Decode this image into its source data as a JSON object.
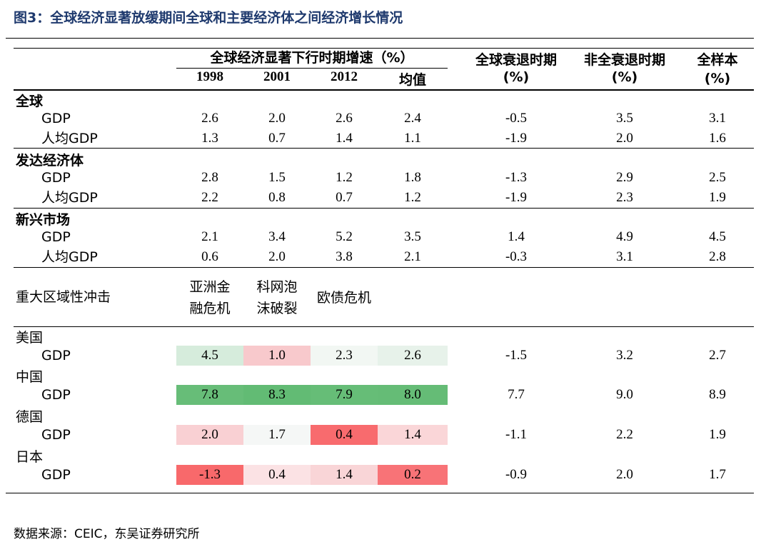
{
  "title": "图3：全球经济显著放缓期间全球和主要经济体之间经济增长情况",
  "source": "数据来源：CEIC，东吴证券研究所",
  "chart_data": {
    "type": "table",
    "header": {
      "group_label": "全球经济显著下行时期增速（%）",
      "years": [
        "1998",
        "2001",
        "2012"
      ],
      "mean_label": "均值",
      "recession_label": "全球衰退时期",
      "recession_unit": "(%)",
      "nonrecession_label": "非全衰退时期",
      "nonrecession_unit": "(%)",
      "full_label": "全样本",
      "full_unit": "(%)"
    },
    "groups": [
      {
        "name": "全球",
        "rows": [
          {
            "label": "GDP",
            "values": [
              "2.6",
              "2.0",
              "2.6",
              "2.4",
              "-0.5",
              "3.5",
              "3.1"
            ]
          },
          {
            "label": "人均GDP",
            "values": [
              "1.3",
              "0.7",
              "1.4",
              "1.1",
              "-1.9",
              "2.0",
              "1.6"
            ]
          }
        ]
      },
      {
        "name": "发达经济体",
        "rows": [
          {
            "label": "GDP",
            "values": [
              "2.8",
              "1.5",
              "1.2",
              "1.8",
              "-1.3",
              "2.9",
              "2.5"
            ]
          },
          {
            "label": "人均GDP",
            "values": [
              "2.2",
              "0.8",
              "0.7",
              "1.2",
              "-1.9",
              "2.3",
              "1.9"
            ]
          }
        ]
      },
      {
        "name": "新兴市场",
        "rows": [
          {
            "label": "GDP",
            "values": [
              "2.1",
              "3.4",
              "5.2",
              "3.5",
              "1.4",
              "4.9",
              "4.5"
            ]
          },
          {
            "label": "人均GDP",
            "values": [
              "0.6",
              "2.0",
              "3.8",
              "2.1",
              "-0.3",
              "3.1",
              "2.8"
            ]
          }
        ]
      }
    ],
    "shock": {
      "label": "重大区域性冲击",
      "events": [
        "亚洲金\n融危机",
        "科网泡\n沫破裂",
        "欧债危机"
      ]
    },
    "countries": [
      {
        "name": "美国",
        "label": "GDP",
        "values": [
          "4.5",
          "1.0",
          "2.3",
          "2.6",
          "-1.5",
          "3.2",
          "2.7"
        ],
        "colors": [
          "#d6ecdc",
          "#f8c9cc",
          "#f2f7f3",
          "#e7f2ea"
        ]
      },
      {
        "name": "中国",
        "label": "GDP",
        "values": [
          "7.8",
          "8.3",
          "7.9",
          "8.0",
          "7.7",
          "9.0",
          "8.9"
        ],
        "colors": [
          "#67bd78",
          "#62bb74",
          "#66bd77",
          "#65bc76"
        ]
      },
      {
        "name": "德国",
        "label": "GDP",
        "values": [
          "2.0",
          "1.7",
          "0.4",
          "1.4",
          "-1.1",
          "2.2",
          "1.9"
        ],
        "colors": [
          "#f9d0d3",
          "#f5f7f6",
          "#f86b6e",
          "#fad6d8"
        ]
      },
      {
        "name": "日本",
        "label": "GDP",
        "values": [
          "-1.3",
          "0.4",
          "1.4",
          "0.2",
          "-0.9",
          "2.0",
          "1.7"
        ],
        "colors": [
          "#f8696b",
          "#fbe2e4",
          "#f9d5d7",
          "#f87377"
        ]
      }
    ]
  }
}
